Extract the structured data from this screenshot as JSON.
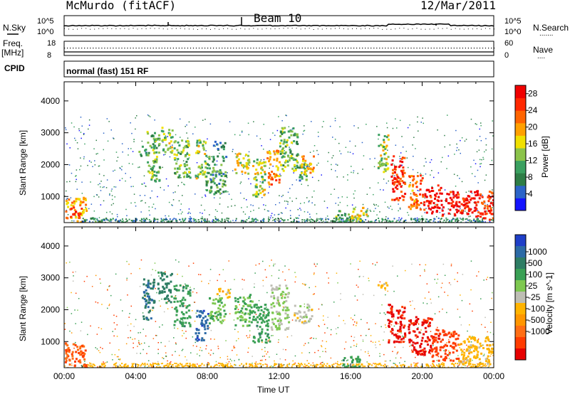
{
  "header": {
    "station": "McMurdo (fitACF)",
    "beam": "Beam 10",
    "date": "12/Mar/2011",
    "cpid_label": "CPID",
    "cpid_value": "normal (fast) 151 RF"
  },
  "noise_panel": {
    "left_label": "N.Sky",
    "right_label": "N.Search",
    "right_legend": ".......",
    "ticks": [
      "10^5",
      "10^0"
    ]
  },
  "freq_panel": {
    "left_label_1": "Freq.",
    "left_label_2": "[MHz]",
    "right_label": "Nave",
    "right_legend": "....",
    "left_ticks": [
      "18",
      "8"
    ],
    "right_ticks": [
      "60",
      "0"
    ]
  },
  "colors": {
    "power": [
      "#1414ff",
      "#2c64c8",
      "#2e7d46",
      "#3aa060",
      "#8bc34a",
      "#f0e000",
      "#ffa000",
      "#ff6400",
      "#ff2800",
      "#f00000"
    ],
    "velocity": [
      "#1f3fc8",
      "#2c6aa6",
      "#2e7d64",
      "#3aa055",
      "#7ec850",
      "#bebeb4",
      "#ffb400",
      "#ff9600",
      "#ff6e14",
      "#ff3c00",
      "#e60000"
    ]
  },
  "chart_data": [
    {
      "type": "heatmap",
      "name": "power",
      "xlabel": "",
      "ylabel": "Slant Range [km]",
      "colorbar_label": "Power [dB]",
      "colorbar_ticks": [
        "4",
        "8",
        "12",
        "16",
        "20",
        "24",
        "28"
      ],
      "colorbar_range": [
        0,
        30
      ],
      "x_ticks": [],
      "y_ticks": [
        "1000",
        "2000",
        "3000",
        "4000"
      ],
      "xlim_hours": [
        0,
        24
      ],
      "ylim_km": [
        180,
        4600
      ],
      "patches": [
        {
          "t": 0.0,
          "t2": 1.2,
          "r": 180,
          "r2": 1000,
          "v": 20
        },
        {
          "t": 0.3,
          "t2": 0.9,
          "r": 350,
          "r2": 650,
          "v": 24
        },
        {
          "t": 1.0,
          "t2": 2.0,
          "r": 200,
          "r2": 350,
          "v": 10
        },
        {
          "t": 4.1,
          "t2": 4.6,
          "r": 2300,
          "r2": 2600,
          "v": 8
        },
        {
          "t": 4.6,
          "t2": 5.3,
          "r": 1500,
          "r2": 3100,
          "v": 12
        },
        {
          "t": 5.4,
          "t2": 6.0,
          "r": 2400,
          "r2": 3200,
          "v": 14
        },
        {
          "t": 6.1,
          "t2": 7.0,
          "r": 1600,
          "r2": 2800,
          "v": 12
        },
        {
          "t": 7.3,
          "t2": 7.9,
          "r": 1600,
          "r2": 2800,
          "v": 14
        },
        {
          "t": 7.9,
          "t2": 9.0,
          "r": 1100,
          "r2": 2300,
          "v": 10
        },
        {
          "t": 8.3,
          "t2": 9.0,
          "r": 2500,
          "r2": 2800,
          "v": 8
        },
        {
          "t": 9.5,
          "t2": 10.3,
          "r": 1700,
          "r2": 2400,
          "v": 16
        },
        {
          "t": 10.5,
          "t2": 11.2,
          "r": 1000,
          "r2": 2200,
          "v": 14
        },
        {
          "t": 11.3,
          "t2": 12.0,
          "r": 1400,
          "r2": 2500,
          "v": 22
        },
        {
          "t": 12.0,
          "t2": 13.0,
          "r": 1800,
          "r2": 3200,
          "v": 12
        },
        {
          "t": 13.0,
          "t2": 13.6,
          "r": 1500,
          "r2": 2100,
          "v": 10
        },
        {
          "t": 13.2,
          "t2": 13.9,
          "r": 1700,
          "r2": 2300,
          "v": 20
        },
        {
          "t": 15.0,
          "t2": 16.0,
          "r": 200,
          "r2": 600,
          "v": 12
        },
        {
          "t": 16.0,
          "t2": 17.0,
          "r": 250,
          "r2": 700,
          "v": 16
        },
        {
          "t": 17.5,
          "t2": 18.1,
          "r": 1800,
          "r2": 3000,
          "v": 14
        },
        {
          "t": 18.2,
          "t2": 19.0,
          "r": 900,
          "r2": 2300,
          "v": 26
        },
        {
          "t": 19.2,
          "t2": 20.0,
          "r": 600,
          "r2": 1700,
          "v": 22
        },
        {
          "t": 20.0,
          "t2": 21.0,
          "r": 500,
          "r2": 1400,
          "v": 28
        },
        {
          "t": 21.0,
          "t2": 23.0,
          "r": 400,
          "r2": 1200,
          "v": 28
        },
        {
          "t": 23.0,
          "t2": 24.0,
          "r": 300,
          "r2": 1200,
          "v": 26
        }
      ]
    },
    {
      "type": "heatmap",
      "name": "velocity",
      "xlabel": "Time UT",
      "ylabel": "Slant Range [km]",
      "colorbar_label": "Velocity [m s^-1]",
      "colorbar_ticks": [
        "1000",
        "500",
        "100",
        "25",
        "-25",
        "-100",
        "-500",
        "-1000"
      ],
      "x_ticks": [
        "00:00",
        "04:00",
        "08:00",
        "12:00",
        "16:00",
        "20:00",
        "00:00"
      ],
      "y_ticks": [
        "1000",
        "2000",
        "3000",
        "4000"
      ],
      "xlim_hours": [
        0,
        24
      ],
      "ylim_km": [
        180,
        4600
      ],
      "patches": [
        {
          "t": 0.0,
          "t2": 1.2,
          "r": 180,
          "r2": 1000,
          "v": -100
        },
        {
          "t": 4.3,
          "t2": 5.0,
          "r": 1700,
          "r2": 3000,
          "v": 500
        },
        {
          "t": 5.2,
          "t2": 6.0,
          "r": 2200,
          "r2": 3200,
          "v": 300
        },
        {
          "t": 6.1,
          "t2": 7.0,
          "r": 1500,
          "r2": 2800,
          "v": 200
        },
        {
          "t": 7.3,
          "t2": 8.0,
          "r": 1000,
          "r2": 2000,
          "v": 800
        },
        {
          "t": 8.0,
          "t2": 9.0,
          "r": 1600,
          "r2": 2400,
          "v": 100
        },
        {
          "t": 8.5,
          "t2": 9.2,
          "r": 2400,
          "r2": 2700,
          "v": 0
        },
        {
          "t": 9.5,
          "t2": 10.5,
          "r": 1500,
          "r2": 2500,
          "v": 100
        },
        {
          "t": 10.5,
          "t2": 11.5,
          "r": 1000,
          "r2": 2200,
          "v": 200
        },
        {
          "t": 11.5,
          "t2": 12.5,
          "r": 1400,
          "r2": 2800,
          "v": 60
        },
        {
          "t": 12.8,
          "t2": 13.8,
          "r": 1600,
          "r2": 2200,
          "v": 40
        },
        {
          "t": 15.5,
          "t2": 16.5,
          "r": 200,
          "r2": 600,
          "v": 200
        },
        {
          "t": 17.5,
          "t2": 18.0,
          "r": 2700,
          "r2": 3000,
          "v": 0
        },
        {
          "t": 18.0,
          "t2": 19.0,
          "r": 1000,
          "r2": 2200,
          "v": -300
        },
        {
          "t": 19.2,
          "t2": 20.5,
          "r": 600,
          "r2": 1800,
          "v": -300
        },
        {
          "t": 20.5,
          "t2": 22.0,
          "r": 400,
          "r2": 1400,
          "v": -200
        },
        {
          "t": 22.0,
          "t2": 24.0,
          "r": 300,
          "r2": 1200,
          "v": 0
        }
      ]
    }
  ]
}
